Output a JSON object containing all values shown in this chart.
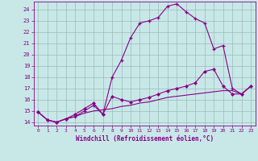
{
  "xlabel": "Windchill (Refroidissement éolien,°C)",
  "bg_color": "#c8e8e8",
  "line_color": "#880088",
  "grid_color": "#99bbbb",
  "x_ticks": [
    0,
    1,
    2,
    3,
    4,
    5,
    6,
    7,
    8,
    9,
    10,
    11,
    12,
    13,
    14,
    15,
    16,
    17,
    18,
    19,
    20,
    21,
    22,
    23
  ],
  "y_ticks": [
    14,
    15,
    16,
    17,
    18,
    19,
    20,
    21,
    22,
    23,
    24
  ],
  "ylim": [
    13.7,
    24.7
  ],
  "xlim": [
    -0.5,
    23.5
  ],
  "line1_x": [
    0,
    1,
    2,
    3,
    4,
    5,
    6,
    7,
    8,
    9,
    10,
    11,
    12,
    13,
    14,
    15,
    16,
    17,
    18,
    19,
    20,
    21,
    22,
    23
  ],
  "line1_y": [
    14.9,
    14.2,
    14.0,
    14.3,
    14.5,
    15.0,
    15.5,
    14.7,
    18.0,
    19.5,
    21.5,
    22.8,
    23.0,
    23.3,
    24.3,
    24.5,
    23.8,
    23.2,
    22.8,
    20.5,
    20.8,
    17.0,
    16.5,
    17.2
  ],
  "line2_x": [
    0,
    1,
    2,
    3,
    4,
    5,
    6,
    7,
    8,
    9,
    10,
    11,
    12,
    13,
    14,
    15,
    16,
    17,
    18,
    19,
    20,
    21,
    22,
    23
  ],
  "line2_y": [
    14.9,
    14.2,
    14.0,
    14.3,
    14.7,
    15.2,
    15.7,
    14.7,
    16.3,
    16.0,
    15.8,
    16.0,
    16.2,
    16.5,
    16.8,
    17.0,
    17.2,
    17.5,
    18.5,
    18.7,
    17.2,
    16.5,
    16.5,
    17.2
  ],
  "line3_x": [
    0,
    1,
    2,
    3,
    4,
    5,
    6,
    7,
    8,
    9,
    10,
    11,
    12,
    13,
    14,
    15,
    16,
    17,
    18,
    19,
    20,
    21,
    22,
    23
  ],
  "line3_y": [
    14.9,
    14.2,
    14.0,
    14.3,
    14.5,
    14.8,
    15.0,
    15.1,
    15.2,
    15.4,
    15.5,
    15.7,
    15.8,
    16.0,
    16.2,
    16.3,
    16.4,
    16.5,
    16.6,
    16.7,
    16.8,
    16.8,
    16.5,
    17.2
  ]
}
